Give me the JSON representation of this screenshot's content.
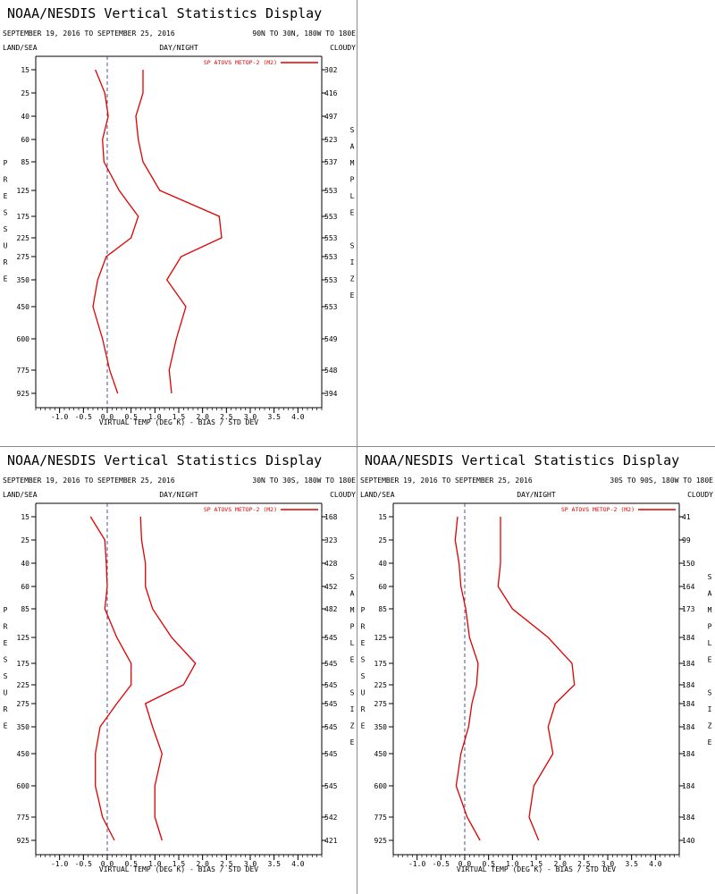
{
  "page": {
    "colors": {
      "series": "#e00000",
      "axis": "#000000",
      "zero_line": "#3c3c80",
      "divider": "#8a8a8a"
    }
  },
  "chart_data": [
    {
      "type": "line",
      "title": "NOAA/NESDIS Vertical Statistics Display",
      "date_range": "SEPTEMBER 19, 2016 TO SEPTEMBER 25, 2016",
      "region": "90N TO 30N, 180W TO 180E",
      "top_left_label": "LAND/SEA",
      "top_center_label": "DAY/NIGHT",
      "top_right_label": "CLOUDY",
      "xlabel": "VIRTUAL TEMP (DEG K) - BIAS / STD DEV",
      "ylabel": "PRESSURE",
      "right_label": "SAMPLE SIZE",
      "legend": "SP ATOVS METOP-2 (M2)",
      "xlim": [
        -1.5,
        4.5
      ],
      "x_ticks": [
        "-1.0",
        "-0.5",
        "0.0",
        "0.5",
        "1.0",
        "1.5",
        "2.0",
        "2.5",
        "3.0",
        "3.5",
        "4.0"
      ],
      "pressure_levels": [
        "15",
        "25",
        "40",
        "60",
        "85",
        "125",
        "175",
        "225",
        "275",
        "350",
        "450",
        "600",
        "775",
        "925"
      ],
      "sample_size": [
        "302",
        "416",
        "497",
        "523",
        "537",
        "553",
        "553",
        "553",
        "553",
        "553",
        "553",
        "549",
        "548",
        "394"
      ],
      "series": [
        {
          "values": [
            -0.25,
            -0.05,
            0.02,
            -0.1,
            -0.07,
            0.25,
            0.65,
            0.5,
            -0.02,
            -0.2,
            -0.3,
            -0.1,
            0.05,
            0.22
          ]
        },
        {
          "values": [
            0.75,
            0.75,
            0.6,
            0.65,
            0.75,
            1.1,
            2.35,
            2.4,
            1.55,
            1.25,
            1.65,
            1.45,
            1.3,
            1.35
          ]
        }
      ]
    },
    {
      "type": "line",
      "title": "NOAA/NESDIS Vertical Statistics Display",
      "date_range": "SEPTEMBER 19, 2016 TO SEPTEMBER 25, 2016",
      "region": "30N TO 30S, 180W TO 180E",
      "top_left_label": "LAND/SEA",
      "top_center_label": "DAY/NIGHT",
      "top_right_label": "CLOUDY",
      "xlabel": "VIRTUAL TEMP (DEG K) - BIAS / STD DEV",
      "ylabel": "PRESSURE",
      "right_label": "SAMPLE SIZE",
      "legend": "SP ATOVS METOP-2 (M2)",
      "xlim": [
        -1.5,
        4.5
      ],
      "x_ticks": [
        "-1.0",
        "-0.5",
        "0.0",
        "0.5",
        "1.0",
        "1.5",
        "2.0",
        "2.5",
        "3.0",
        "3.5",
        "4.0"
      ],
      "pressure_levels": [
        "15",
        "25",
        "40",
        "60",
        "85",
        "125",
        "175",
        "225",
        "275",
        "350",
        "450",
        "600",
        "775",
        "925"
      ],
      "sample_size": [
        "168",
        "323",
        "428",
        "452",
        "482",
        "545",
        "545",
        "545",
        "545",
        "545",
        "545",
        "545",
        "542",
        "421"
      ],
      "series": [
        {
          "values": [
            -0.35,
            -0.05,
            -0.02,
            0.0,
            -0.05,
            0.2,
            0.5,
            0.5,
            0.2,
            -0.15,
            -0.25,
            -0.25,
            -0.1,
            0.15
          ]
        },
        {
          "values": [
            0.7,
            0.72,
            0.8,
            0.8,
            0.95,
            1.35,
            1.85,
            1.6,
            0.8,
            0.95,
            1.15,
            1.0,
            1.0,
            1.15
          ]
        }
      ]
    },
    {
      "type": "line",
      "title": "NOAA/NESDIS Vertical Statistics Display",
      "date_range": "SEPTEMBER 19, 2016 TO SEPTEMBER 25, 2016",
      "region": "30S TO 90S, 180W TO 180E",
      "top_left_label": "LAND/SEA",
      "top_center_label": "DAY/NIGHT",
      "top_right_label": "CLOUDY",
      "xlabel": "VIRTUAL TEMP (DEG K) - BIAS / STD DEV",
      "ylabel": "PRESSURE",
      "right_label": "SAMPLE SIZE",
      "legend": "SP ATOVS METOP-2 (M2)",
      "xlim": [
        -1.5,
        4.5
      ],
      "x_ticks": [
        "-1.0",
        "-0.5",
        "0.0",
        "0.5",
        "1.0",
        "1.5",
        "2.0",
        "2.5",
        "3.0",
        "3.5",
        "4.0"
      ],
      "pressure_levels": [
        "15",
        "25",
        "40",
        "60",
        "85",
        "125",
        "175",
        "225",
        "275",
        "350",
        "450",
        "600",
        "775",
        "925"
      ],
      "sample_size": [
        "41",
        "99",
        "150",
        "164",
        "173",
        "184",
        "184",
        "184",
        "184",
        "184",
        "184",
        "184",
        "184",
        "140"
      ],
      "series": [
        {
          "values": [
            -0.15,
            -0.2,
            -0.12,
            -0.08,
            0.02,
            0.1,
            0.28,
            0.25,
            0.15,
            0.08,
            -0.08,
            -0.18,
            0.05,
            0.32
          ]
        },
        {
          "values": [
            0.75,
            0.75,
            0.75,
            0.7,
            1.0,
            1.75,
            2.25,
            2.3,
            1.9,
            1.75,
            1.85,
            1.45,
            1.35,
            1.55
          ]
        }
      ]
    }
  ]
}
